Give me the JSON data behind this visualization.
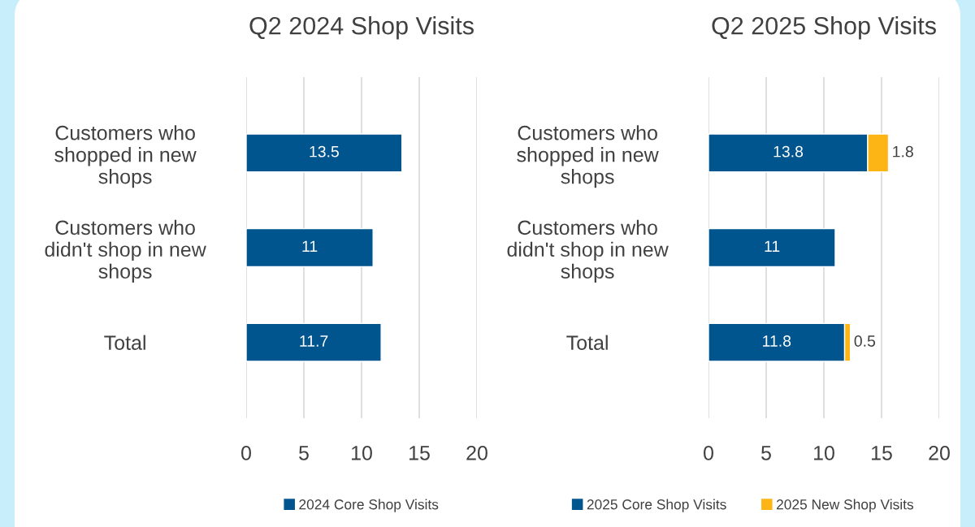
{
  "chart_data": [
    {
      "type": "bar",
      "orientation": "horizontal",
      "stacked": true,
      "title": "Q2 2024 Shop Visits",
      "categories": [
        "Customers who shopped in new shops",
        "Customers who didn't shop in new shops",
        "Total"
      ],
      "series": [
        {
          "name": "2024 Core Shop Visits",
          "color": "#00558f",
          "values": [
            13.5,
            11,
            11.7
          ]
        }
      ],
      "xlim": [
        0,
        20
      ],
      "xticks": [
        0,
        5,
        10,
        15,
        20
      ],
      "grid": "x",
      "legend": "bottom",
      "data_labels": true
    },
    {
      "type": "bar",
      "orientation": "horizontal",
      "stacked": true,
      "title": "Q2 2025 Shop Visits",
      "categories": [
        "Customers who shopped in new shops",
        "Customers who didn't shop in new shops",
        "Total"
      ],
      "series": [
        {
          "name": "2025 Core Shop Visits",
          "color": "#00558f",
          "values": [
            13.8,
            11,
            11.8
          ]
        },
        {
          "name": "2025 New Shop Visits",
          "color": "#fdb515",
          "values": [
            1.8,
            null,
            0.5
          ]
        }
      ],
      "xlim": [
        0,
        20
      ],
      "xticks": [
        0,
        5,
        10,
        15,
        20
      ],
      "grid": "x",
      "legend": "bottom",
      "data_labels": true
    }
  ]
}
